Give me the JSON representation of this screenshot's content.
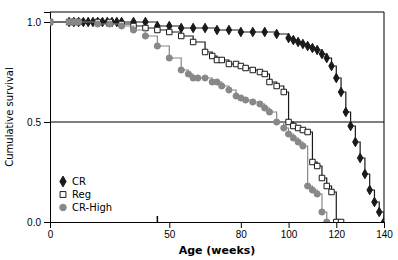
{
  "chart_data": {
    "type": "step",
    "xlabel": "Age (weeks)",
    "ylabel": "Cumulative survival",
    "xlim": [
      0,
      140
    ],
    "ylim": [
      0.0,
      1.05
    ],
    "xticks": [
      0,
      50,
      80,
      100,
      120,
      140
    ],
    "yticks": [
      {
        "value": 0,
        "label": "0.0"
      },
      0.5,
      {
        "value": 1,
        "label": "1.0"
      }
    ],
    "grid": false,
    "legend": "lower left",
    "hline": 0.5,
    "x_marks": [
      45
    ],
    "series": [
      {
        "name": "CR",
        "color": "#1a1a1a",
        "marker": "diamond",
        "x": [
          0,
          8,
          10,
          12,
          14,
          16,
          18,
          20,
          22,
          24,
          26,
          28,
          30,
          35,
          40,
          45,
          50,
          55,
          60,
          65,
          70,
          75,
          80,
          85,
          90,
          95,
          100,
          102,
          104,
          106,
          108,
          110,
          112,
          114,
          116,
          118,
          120,
          122,
          124,
          126,
          128,
          130,
          132,
          134,
          136,
          138,
          140
        ],
        "values": [
          1.0,
          1.0,
          1.0,
          1.0,
          1.0,
          1.0,
          1.0,
          1.0,
          1.0,
          1.0,
          1.0,
          1.0,
          1.0,
          1.0,
          1.0,
          0.98,
          0.98,
          0.97,
          0.97,
          0.97,
          0.96,
          0.96,
          0.95,
          0.95,
          0.95,
          0.94,
          0.92,
          0.91,
          0.9,
          0.89,
          0.88,
          0.87,
          0.86,
          0.84,
          0.82,
          0.78,
          0.72,
          0.65,
          0.55,
          0.48,
          0.4,
          0.32,
          0.24,
          0.16,
          0.1,
          0.05,
          0.0
        ]
      },
      {
        "name": "Reg",
        "color": "#1a1a1a",
        "marker": "open-square",
        "x": [
          0,
          8,
          10,
          12,
          20,
          25,
          30,
          35,
          40,
          45,
          50,
          55,
          60,
          65,
          68,
          70,
          72,
          75,
          78,
          80,
          82,
          85,
          88,
          90,
          92,
          95,
          98,
          100,
          102,
          104,
          106,
          108,
          110,
          112,
          114,
          116,
          118,
          120,
          122
        ],
        "values": [
          1.0,
          1.0,
          1.0,
          1.0,
          1.0,
          1.0,
          0.99,
          0.98,
          0.97,
          0.96,
          0.95,
          0.93,
          0.9,
          0.85,
          0.83,
          0.81,
          0.81,
          0.79,
          0.79,
          0.78,
          0.77,
          0.76,
          0.75,
          0.74,
          0.7,
          0.68,
          0.65,
          0.5,
          0.48,
          0.47,
          0.46,
          0.45,
          0.3,
          0.28,
          0.22,
          0.18,
          0.15,
          0.0,
          0.0
        ]
      },
      {
        "name": "CR-High",
        "color": "#888888",
        "marker": "circle",
        "x": [
          0,
          8,
          10,
          12,
          20,
          25,
          30,
          35,
          40,
          45,
          50,
          55,
          58,
          60,
          62,
          65,
          68,
          70,
          72,
          75,
          78,
          80,
          82,
          85,
          88,
          90,
          92,
          95,
          98,
          100,
          102,
          104,
          106,
          108,
          110,
          112,
          114,
          116
        ],
        "values": [
          1.0,
          1.0,
          1.0,
          1.0,
          0.99,
          0.99,
          0.98,
          0.96,
          0.93,
          0.88,
          0.82,
          0.76,
          0.74,
          0.72,
          0.72,
          0.72,
          0.7,
          0.7,
          0.68,
          0.66,
          0.63,
          0.62,
          0.61,
          0.6,
          0.59,
          0.57,
          0.55,
          0.5,
          0.47,
          0.44,
          0.42,
          0.4,
          0.38,
          0.18,
          0.16,
          0.14,
          0.05,
          0.0
        ]
      }
    ]
  }
}
